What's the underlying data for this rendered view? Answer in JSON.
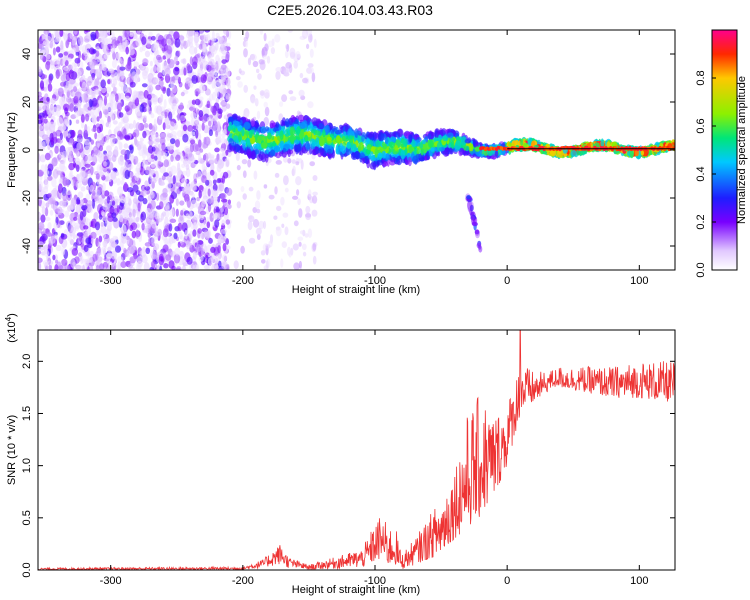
{
  "title": "C2E5.2026.104.03.43.R03",
  "colors": {
    "line": "#ee3333",
    "zero_line": "#000000",
    "axis": "#000000"
  },
  "chart_data": [
    {
      "type": "heatmap",
      "name": "spectrogram",
      "xlabel": "Height of straight line (km)",
      "ylabel": "Frequency (Hz)",
      "xlim": [
        -355,
        127
      ],
      "ylim": [
        -50,
        50
      ],
      "xticks": [
        -300,
        -200,
        -100,
        0,
        100
      ],
      "xtick_labels": [
        "-300",
        "-200",
        "-100",
        "0",
        "100"
      ],
      "yticks": [
        -40,
        -20,
        0,
        20,
        40
      ],
      "ytick_labels": [
        "-40",
        "-20",
        "0",
        "20",
        "40"
      ],
      "noise_region": {
        "x_range": [
          -355,
          -210
        ],
        "y_range": [
          -50,
          50
        ],
        "density": "high"
      },
      "faint_region": {
        "x_range": [
          -205,
          -145
        ],
        "y_range": [
          -50,
          50
        ],
        "density": "low"
      },
      "signal_band": {
        "x": [
          -210,
          -180,
          -150,
          -120,
          -100,
          -80,
          -60,
          -40,
          -20,
          0,
          40,
          80,
          127
        ],
        "center_hz": [
          6,
          5,
          5,
          5,
          -2,
          2,
          2,
          2,
          1,
          1,
          0.5,
          0.5,
          0.5
        ],
        "width_hz": [
          14,
          14,
          14,
          12,
          14,
          12,
          10,
          8,
          4,
          3,
          2,
          2,
          2
        ]
      },
      "tail": {
        "x": [
          -30,
          -20
        ],
        "y": [
          -18,
          -42
        ]
      },
      "colorbar": {
        "label": "Normalized spectral amplitude",
        "range": [
          0.0,
          1.0
        ],
        "ticks": [
          0.0,
          0.2,
          0.4,
          0.6,
          0.8
        ],
        "tick_labels": [
          "0.0",
          "0.2",
          "0.4",
          "0.6",
          "0.8"
        ]
      }
    },
    {
      "type": "line",
      "name": "snr",
      "xlabel": "Height of straight line (km)",
      "ylabel": "SNR (10 * v/v)",
      "scale_label": "(x10",
      "scale_exponent": "4",
      "scale_suffix": ")",
      "xlim": [
        -355,
        127
      ],
      "ylim": [
        0,
        2.3
      ],
      "xticks": [
        -300,
        -200,
        -100,
        0,
        100
      ],
      "xtick_labels": [
        "-300",
        "-200",
        "-100",
        "0",
        "100"
      ],
      "yticks": [
        0.0,
        0.5,
        1.0,
        1.5,
        2.0
      ],
      "ytick_labels": [
        "0.0",
        "0.5",
        "1.0",
        "1.5",
        "2.0"
      ],
      "envelope": {
        "x": [
          -355,
          -200,
          -185,
          -172,
          -165,
          -150,
          -110,
          -100,
          -95,
          -90,
          -85,
          -80,
          -70,
          -50,
          -40,
          -30,
          -20,
          -10,
          0,
          10,
          20,
          30,
          40,
          60,
          80,
          100,
          127
        ],
        "low": [
          0.0,
          0.0,
          0.02,
          0.05,
          0.02,
          0.0,
          0.02,
          0.08,
          0.1,
          0.05,
          0.05,
          0.0,
          0.05,
          0.15,
          0.3,
          0.4,
          0.5,
          0.7,
          1.0,
          1.5,
          1.6,
          1.7,
          1.75,
          1.7,
          1.65,
          1.65,
          1.6
        ],
        "high": [
          0.02,
          0.03,
          0.1,
          0.25,
          0.12,
          0.05,
          0.2,
          0.45,
          0.55,
          0.4,
          0.45,
          0.15,
          0.3,
          0.7,
          1.0,
          1.5,
          1.7,
          1.5,
          1.6,
          2.0,
          1.9,
          1.9,
          1.95,
          1.95,
          1.95,
          2.0,
          2.0
        ]
      },
      "spike": {
        "x": 10,
        "y": 2.3
      }
    }
  ]
}
